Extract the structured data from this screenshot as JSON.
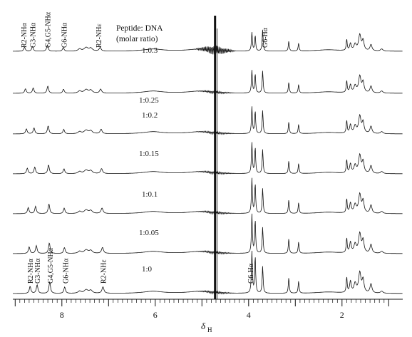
{
  "chart_data": {
    "type": "line",
    "xlabel_main": "δ",
    "xlabel_sub": "H",
    "x_reversed": true,
    "xlim": [
      9.05,
      0.7
    ],
    "ticks_major": [
      8,
      6,
      4,
      2
    ],
    "legend_title": [
      "Peptide: DNA",
      "(molar ratio)"
    ],
    "series": [
      {
        "name": "1:0.3"
      },
      {
        "name": "1:0.25"
      },
      {
        "name": "1:0.2"
      },
      {
        "name": "1:0.15"
      },
      {
        "name": "1:0.1"
      },
      {
        "name": "1:0.05"
      },
      {
        "name": "1:0"
      }
    ],
    "top_labels": [
      {
        "text": "R2-NHα",
        "x": 8.82
      },
      {
        "text": "G3-NHα",
        "x": 8.63
      },
      {
        "text": "G4,G5-NHα",
        "x": 8.31
      },
      {
        "text": "G6-NHα",
        "x": 7.96
      },
      {
        "text": "R2-NHε",
        "x": 7.22
      },
      {
        "text": "G6-Hα",
        "x": 3.66
      }
    ],
    "bottom_labels": [
      {
        "text": "R2-NHα",
        "x": 8.68
      },
      {
        "text": "G3-NHα",
        "x": 8.53
      },
      {
        "text": "G4,G5-NHα",
        "x": 8.26
      },
      {
        "text": "G6-NHα",
        "x": 7.93
      },
      {
        "text": "R2-NHε",
        "x": 7.12
      },
      {
        "text": "G6-Hα",
        "x": 3.97
      }
    ]
  }
}
